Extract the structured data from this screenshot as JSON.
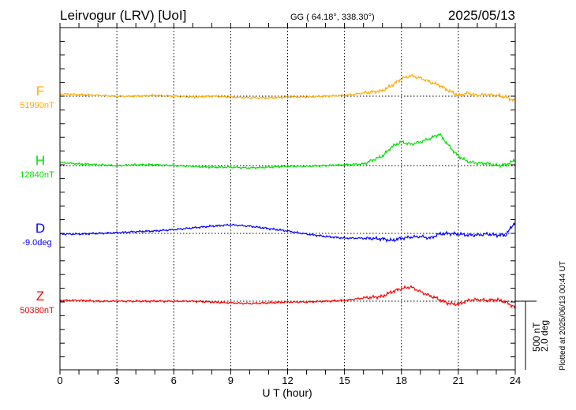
{
  "header": {
    "station": "Leirvogur (LRV)  [UoI]",
    "coords": "GG ( 64.18°, 338.30°)",
    "date": "2025/05/13"
  },
  "footer": {
    "plotted_at": "Plotted at 2025/06/13 00:44 UT",
    "scale_nt": "500 nT",
    "scale_deg": "2.0 deg"
  },
  "chart_data": {
    "type": "line",
    "title": "Leirvogur (LRV)  [UoI]",
    "xlabel": "U T (hour)",
    "xlim": [
      0,
      24
    ],
    "x_ticks": [
      "0",
      "3",
      "6",
      "9",
      "12",
      "15",
      "18",
      "21",
      "24"
    ],
    "grid": true,
    "scale": {
      "nT_per_bar": 500,
      "deg_per_bar": 2.0
    },
    "x": [
      0,
      1,
      2,
      3,
      4,
      5,
      6,
      7,
      8,
      9,
      10,
      11,
      12,
      13,
      14,
      15,
      16,
      17,
      17.5,
      18,
      18.5,
      19,
      19.5,
      20,
      20.5,
      21,
      21.5,
      22,
      22.5,
      23,
      23.5,
      24
    ],
    "series": [
      {
        "name": "F",
        "baseline_label": "51990nT",
        "unit": "nT",
        "color": "#ffaa00",
        "values": [
          17,
          12,
          6,
          0,
          0,
          6,
          0,
          -6,
          0,
          -6,
          -12,
          -12,
          -6,
          -6,
          0,
          6,
          23,
          40,
          80,
          127,
          150,
          132,
          104,
          80,
          40,
          6,
          23,
          6,
          12,
          6,
          -6,
          -35
        ]
      },
      {
        "name": "H",
        "baseline_label": "12840nT",
        "unit": "nT",
        "color": "#00e000",
        "values": [
          23,
          12,
          6,
          0,
          6,
          6,
          0,
          -6,
          -12,
          -12,
          -17,
          -12,
          -6,
          -6,
          0,
          6,
          12,
          69,
          138,
          173,
          155,
          173,
          196,
          230,
          144,
          69,
          29,
          17,
          17,
          0,
          6,
          40
        ]
      },
      {
        "name": "D",
        "baseline_label": "-9.0deg",
        "unit": "deg",
        "color": "#0000ff",
        "values": [
          -0.02,
          -0.02,
          0,
          0.02,
          0.05,
          0.07,
          0.11,
          0.16,
          0.21,
          0.25,
          0.21,
          0.14,
          0.07,
          -0.02,
          -0.09,
          -0.14,
          -0.14,
          -0.16,
          -0.21,
          -0.14,
          -0.11,
          -0.09,
          -0.14,
          -0.02,
          0,
          -0.02,
          -0.05,
          -0.05,
          -0.02,
          -0.05,
          -0.05,
          0.34
        ]
      },
      {
        "name": "Z",
        "baseline_label": "50380nT",
        "unit": "nT",
        "color": "#ff0000",
        "values": [
          6,
          6,
          0,
          0,
          0,
          0,
          0,
          0,
          -6,
          -12,
          -17,
          -12,
          -6,
          -6,
          0,
          6,
          23,
          35,
          69,
          92,
          104,
          69,
          40,
          12,
          -17,
          -23,
          6,
          12,
          6,
          12,
          -6,
          -46
        ]
      }
    ]
  }
}
